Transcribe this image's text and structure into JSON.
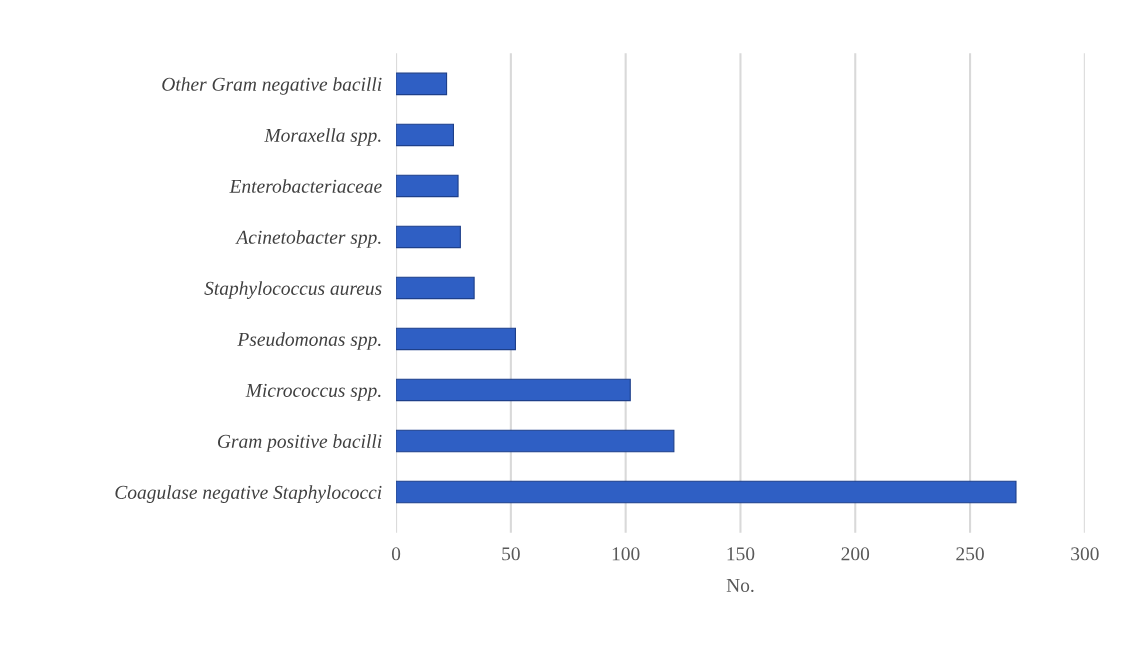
{
  "chart_data": {
    "type": "bar",
    "orientation": "horizontal",
    "xlabel": "No.",
    "categories": [
      "Other Gram negative bacilli",
      "Moraxella spp.",
      "Enterobacteriaceae",
      "Acinetobacter spp.",
      "Staphylococcus aureus",
      "Pseudomonas spp.",
      "Micrococcus spp.",
      "Gram positive bacilli",
      "Coagulase negative Staphylococci"
    ],
    "values": [
      22,
      25,
      27,
      28,
      34,
      52,
      102,
      121,
      270
    ],
    "color": "#2f5fc4",
    "xlim": [
      0,
      300
    ],
    "xticks": [
      0,
      50,
      100,
      150,
      200,
      250,
      300
    ],
    "grid": "x"
  }
}
